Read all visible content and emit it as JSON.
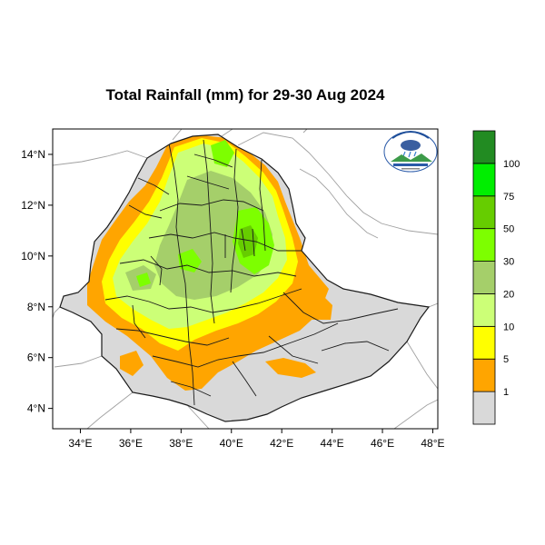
{
  "title": "Total Rainfall (mm) for 29-30 Aug 2024",
  "axes": {
    "x_ticks": [
      {
        "lon": 34,
        "label": "34°E"
      },
      {
        "lon": 36,
        "label": "36°E"
      },
      {
        "lon": 38,
        "label": "38°E"
      },
      {
        "lon": 40,
        "label": "40°E"
      },
      {
        "lon": 42,
        "label": "42°E"
      },
      {
        "lon": 44,
        "label": "44°E"
      },
      {
        "lon": 46,
        "label": "46°E"
      },
      {
        "lon": 48,
        "label": "48°E"
      }
    ],
    "y_ticks": [
      {
        "lat": 4,
        "label": "4°N"
      },
      {
        "lat": 6,
        "label": "6°N"
      },
      {
        "lat": 8,
        "label": "8°N"
      },
      {
        "lat": 10,
        "label": "10°N"
      },
      {
        "lat": 12,
        "label": "12°N"
      },
      {
        "lat": 14,
        "label": "14°N"
      }
    ],
    "lon_range": [
      32.9,
      48.2
    ],
    "lat_range": [
      3.2,
      15.0
    ]
  },
  "colorbar": {
    "levels": [
      {
        "color": "#d9d9d9",
        "label": ""
      },
      {
        "color": "#ffa500",
        "label": "1"
      },
      {
        "color": "#ffff00",
        "label": "5"
      },
      {
        "color": "#ccff77",
        "label": "10"
      },
      {
        "color": "#a5cf6a",
        "label": "20"
      },
      {
        "color": "#7dff00",
        "label": "30"
      },
      {
        "color": "#66cd00",
        "label": "50"
      },
      {
        "color": "#00ee00",
        "label": "75"
      },
      {
        "color": "#228b22",
        "label": "100"
      }
    ]
  },
  "colors": {
    "no_rain": "#d9d9d9",
    "light": "#ffa500",
    "moderate": "#ffff00",
    "green_light": "#ccff77",
    "green_mid": "#a5cf6a",
    "green_bright": "#7dff00",
    "green_dark": "#66cd00",
    "neighbor_border": "#a0a0a0"
  },
  "logo": {
    "icon": "ethiopian-meteorology-institute-logo"
  }
}
